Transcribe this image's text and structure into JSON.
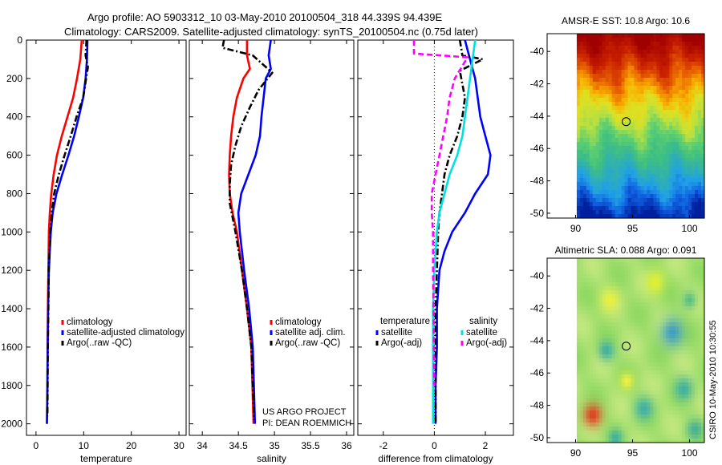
{
  "title": {
    "line1": "Argo profile: AO 5903312_10 03-May-2010 20100504_318 44.339S 94.439E",
    "line2": "Climatology: CARS2009. Satellite-adjusted climatology: synTS_20100504.nc (0.75d later)"
  },
  "credits": {
    "project": "US ARGO PROJECT",
    "pi": "PI: DEAN ROEMMICH",
    "stamp": "CSIRO 10-May-2010 10:30:55"
  },
  "colors": {
    "climatology": "#ff0000",
    "satellite_adj": "#0000ff",
    "argo_raw": "#000000",
    "diff_satellite": "#00e0e0",
    "diff_argo_adj": "#ff00ff"
  },
  "chart_data": [
    {
      "type": "line",
      "id": "temperature",
      "xlabel": "temperature",
      "ylabel": "",
      "xlim": [
        -2,
        31.5
      ],
      "ylim": [
        0,
        2060
      ],
      "y_reversed": true,
      "xticks": [
        0,
        10,
        20,
        30
      ],
      "yticks": [
        0,
        200,
        400,
        600,
        800,
        1000,
        1200,
        1400,
        1600,
        1800,
        2000
      ],
      "legend": [
        "climatology",
        "satellite-adjusted climatology",
        "Argo(..raw -QC)"
      ],
      "legend_position": "lower-right",
      "series": [
        {
          "name": "climatology",
          "style": "solid",
          "color": "#ff0000",
          "x": [
            9.6,
            9.3,
            8.6,
            7.8,
            6.6,
            5.4,
            4.4,
            3.7,
            3.2,
            2.9,
            2.7,
            2.6,
            2.5,
            2.45,
            2.4,
            2.3
          ],
          "y": [
            0,
            100,
            200,
            300,
            400,
            500,
            600,
            700,
            800,
            900,
            1000,
            1200,
            1400,
            1600,
            1800,
            2000
          ]
        },
        {
          "name": "satellite-adjusted climatology",
          "style": "solid",
          "color": "#0000ff",
          "x": [
            10.8,
            10.7,
            10.4,
            9.9,
            9.0,
            8.0,
            6.8,
            5.5,
            4.3,
            3.5,
            3.1,
            2.7,
            2.55,
            2.45,
            2.4,
            2.3
          ],
          "y": [
            0,
            100,
            200,
            300,
            400,
            500,
            600,
            700,
            800,
            900,
            1000,
            1200,
            1400,
            1600,
            1800,
            2000
          ]
        },
        {
          "name": "Argo(..raw -QC)",
          "style": "dashdot",
          "color": "#000000",
          "x": [
            10.6,
            10.4,
            10.9,
            9.9,
            8.5,
            7.3,
            6.0,
            4.8,
            3.8,
            3.3,
            3.0,
            2.7,
            2.6,
            2.5,
            2.45,
            2.4
          ],
          "y": [
            0,
            80,
            140,
            300,
            400,
            500,
            600,
            700,
            800,
            900,
            1000,
            1200,
            1400,
            1600,
            1800,
            1960
          ]
        }
      ]
    },
    {
      "type": "line",
      "id": "salinity",
      "xlabel": "salinity",
      "ylabel": "",
      "xlim": [
        33.82,
        36.1
      ],
      "ylim": [
        0,
        2060
      ],
      "y_reversed": true,
      "xticks": [
        34,
        34.5,
        35,
        35.5,
        36
      ],
      "yticks": [],
      "legend": [
        "climatology",
        "satellite adj. clim.",
        "Argo(..raw -QC)"
      ],
      "legend_position": "lower-right",
      "series": [
        {
          "name": "climatology",
          "style": "solid",
          "color": "#ff0000",
          "x": [
            34.62,
            34.62,
            34.66,
            34.57,
            34.48,
            34.43,
            34.4,
            34.38,
            34.37,
            34.38,
            34.42,
            34.48,
            34.55,
            34.62,
            34.68,
            34.71
          ],
          "y": [
            0,
            80,
            150,
            200,
            300,
            400,
            500,
            600,
            700,
            800,
            900,
            1000,
            1200,
            1400,
            1600,
            2000
          ]
        },
        {
          "name": "satellite adj. clim.",
          "style": "solid",
          "color": "#0000ff",
          "x": [
            34.95,
            34.92,
            34.95,
            34.88,
            34.85,
            34.82,
            34.8,
            34.74,
            34.64,
            34.54,
            34.5,
            34.52,
            34.58,
            34.65,
            34.7,
            34.73
          ],
          "y": [
            0,
            80,
            150,
            200,
            300,
            400,
            500,
            600,
            700,
            800,
            900,
            1000,
            1200,
            1400,
            1600,
            2000
          ]
        },
        {
          "name": "Argo(..raw -QC)",
          "style": "dashdot",
          "color": "#000000",
          "x": [
            34.3,
            34.28,
            34.7,
            34.97,
            34.78,
            34.66,
            34.54,
            34.46,
            34.4,
            34.38,
            34.38,
            34.46,
            34.55,
            34.62,
            34.68,
            34.72
          ],
          "y": [
            0,
            40,
            80,
            170,
            260,
            350,
            450,
            550,
            650,
            750,
            850,
            1000,
            1200,
            1400,
            1600,
            1980
          ]
        }
      ]
    },
    {
      "type": "line",
      "id": "difference",
      "xlabel": "difference from climatology",
      "ylabel": "",
      "xlim": [
        -3,
        3.1
      ],
      "ylim": [
        0,
        2060
      ],
      "y_reversed": true,
      "xticks": [
        -2,
        0,
        2
      ],
      "yticks": [],
      "zero_line": "dotted",
      "legend_titles": [
        "temperature",
        "salinity"
      ],
      "legend": [
        "satellite",
        "Argo(-adj)",
        "satellite",
        "Argo(-adj)"
      ],
      "legend_position": "lower",
      "series": [
        {
          "name": "satellite",
          "group": "temperature",
          "style": "solid",
          "color": "#0000ff",
          "x": [
            1.2,
            1.4,
            1.6,
            1.7,
            1.8,
            2.0,
            2.2,
            2.1,
            1.6,
            1.2,
            0.7,
            0.4,
            0.2,
            0.1,
            0.1,
            0.05,
            0.05
          ],
          "y": [
            0,
            100,
            200,
            300,
            400,
            500,
            600,
            700,
            800,
            900,
            1000,
            1100,
            1200,
            1400,
            1600,
            1800,
            2000
          ]
        },
        {
          "name": "Argo(-adj)",
          "group": "temperature",
          "style": "dashdot",
          "color": "#000000",
          "x": [
            1.0,
            1.1,
            1.9,
            1.0,
            1.2,
            1.1,
            0.9,
            0.6,
            0.4,
            0.3,
            0.2,
            0.15,
            0.1,
            0.05,
            0.05,
            0.05
          ],
          "y": [
            0,
            80,
            100,
            160,
            300,
            400,
            500,
            600,
            700,
            800,
            900,
            1000,
            1200,
            1400,
            1600,
            2000
          ]
        },
        {
          "name": "satellite",
          "group": "salinity",
          "style": "solid",
          "color": "#00e0e0",
          "x": [
            1.6,
            1.5,
            1.4,
            1.3,
            1.2,
            1.1,
            0.9,
            0.6,
            0.4,
            0.2,
            0.1,
            0.0,
            -0.05,
            -0.05,
            -0.05
          ],
          "y": [
            0,
            100,
            200,
            300,
            400,
            500,
            600,
            700,
            800,
            900,
            1000,
            1200,
            1400,
            1600,
            2000
          ]
        },
        {
          "name": "Argo(-adj)",
          "group": "salinity",
          "style": "dashed",
          "color": "#ff00ff",
          "x": [
            -0.8,
            -0.8,
            1.3,
            0.8,
            0.6,
            0.5,
            0.35,
            0.2,
            0.05,
            -0.1,
            -0.1,
            -0.05,
            -0.05,
            0.0
          ],
          "y": [
            0,
            70,
            90,
            200,
            300,
            400,
            500,
            600,
            700,
            800,
            900,
            1000,
            1200,
            1800
          ]
        }
      ]
    },
    {
      "type": "heatmap",
      "id": "sst_map",
      "title": "AMSR-E SST: 10.8 Argo: 10.6",
      "xlim": [
        87.5,
        101.3
      ],
      "ylim": [
        -50.3,
        -38.9
      ],
      "xticks": [
        90,
        95,
        100
      ],
      "yticks": [
        -40,
        -42,
        -44,
        -46,
        -48,
        -50
      ],
      "data_x_min": 90.1,
      "marker": {
        "lon": 94.44,
        "lat": -44.34,
        "shape": "circle"
      },
      "colormap_bands": [
        {
          "lat": -39.0,
          "color": "#a00000"
        },
        {
          "lat": -40.5,
          "color": "#c82000"
        },
        {
          "lat": -41.6,
          "color": "#e86000"
        },
        {
          "lat": -42.6,
          "color": "#f8b000"
        },
        {
          "lat": -43.5,
          "color": "#e0e020"
        },
        {
          "lat": -44.4,
          "color": "#b8e040"
        },
        {
          "lat": -45.3,
          "color": "#60d070"
        },
        {
          "lat": -46.3,
          "color": "#40c080"
        },
        {
          "lat": -47.3,
          "color": "#30b0b0"
        },
        {
          "lat": -48.3,
          "color": "#20a0e8"
        },
        {
          "lat": -49.3,
          "color": "#1060e0"
        },
        {
          "lat": -50.3,
          "color": "#0020a0"
        }
      ]
    },
    {
      "type": "heatmap",
      "id": "sla_map",
      "title": "Altimetric SLA: 0.088 Argo: 0.091",
      "xlim": [
        87.5,
        101.3
      ],
      "ylim": [
        -50.3,
        -38.9
      ],
      "xticks": [
        90,
        95,
        100
      ],
      "yticks": [
        -40,
        -42,
        -44,
        -46,
        -48,
        -50
      ],
      "data_x_min": 90.1,
      "marker": {
        "lon": 94.44,
        "lat": -44.34,
        "shape": "circle"
      },
      "base_color": "#a8e070",
      "blobs": [
        {
          "lon": 98.5,
          "lat": -43.5,
          "r": 1.0,
          "color": "#40a0c0"
        },
        {
          "lon": 92.7,
          "lat": -44.6,
          "r": 0.7,
          "color": "#40b0a0"
        },
        {
          "lon": 96.0,
          "lat": -48.2,
          "r": 0.8,
          "color": "#40b0a8"
        },
        {
          "lon": 91.5,
          "lat": -48.6,
          "r": 0.8,
          "color": "#e04020"
        },
        {
          "lon": 99.5,
          "lat": -47.0,
          "r": 0.8,
          "color": "#40b0a0"
        },
        {
          "lon": 97.0,
          "lat": -40.4,
          "r": 0.8,
          "color": "#e0f030"
        },
        {
          "lon": 93.0,
          "lat": -41.5,
          "r": 0.8,
          "color": "#e8f040"
        },
        {
          "lon": 100.5,
          "lat": -49.5,
          "r": 0.7,
          "color": "#48b098"
        },
        {
          "lon": 94.5,
          "lat": -46.5,
          "r": 0.6,
          "color": "#f0f040"
        },
        {
          "lon": 93.5,
          "lat": -50.0,
          "r": 0.6,
          "color": "#40b0a0"
        },
        {
          "lon": 100.0,
          "lat": -41.5,
          "r": 0.6,
          "color": "#58c080"
        }
      ]
    }
  ]
}
